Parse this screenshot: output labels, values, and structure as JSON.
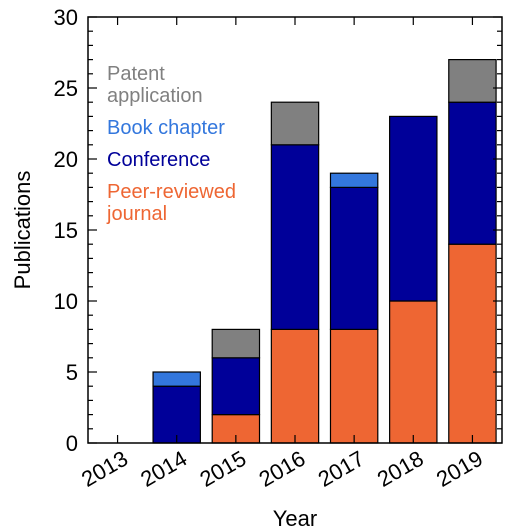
{
  "chart_data": {
    "type": "bar",
    "stacked": true,
    "title": "",
    "xlabel": "Year",
    "ylabel": "Publications",
    "categories": [
      "2013",
      "2014",
      "2015",
      "2016",
      "2017",
      "2018",
      "2019"
    ],
    "ylim": [
      0,
      30
    ],
    "y_major_ticks": [
      0,
      5,
      10,
      15,
      20,
      25,
      30
    ],
    "y_minor_step": 1,
    "grid": false,
    "legend_position": "upper-left",
    "series": [
      {
        "name": "Peer-reviewed journal",
        "legend_lines": [
          "Peer-reviewed",
          "journal"
        ],
        "color": "#ee6633",
        "values": [
          0,
          0,
          2,
          8,
          8,
          10,
          14
        ]
      },
      {
        "name": "Conference",
        "legend_lines": [
          "Conference"
        ],
        "color": "#000099",
        "values": [
          0,
          4,
          4,
          13,
          10,
          13,
          10
        ]
      },
      {
        "name": "Book chapter",
        "legend_lines": [
          "Book chapter"
        ],
        "color": "#3377dd",
        "values": [
          0,
          1,
          0,
          0,
          1,
          0,
          0
        ]
      },
      {
        "name": "Patent application",
        "legend_lines": [
          "Patent",
          "application"
        ],
        "color": "#808080",
        "values": [
          0,
          0,
          2,
          3,
          0,
          0,
          3
        ]
      }
    ]
  }
}
